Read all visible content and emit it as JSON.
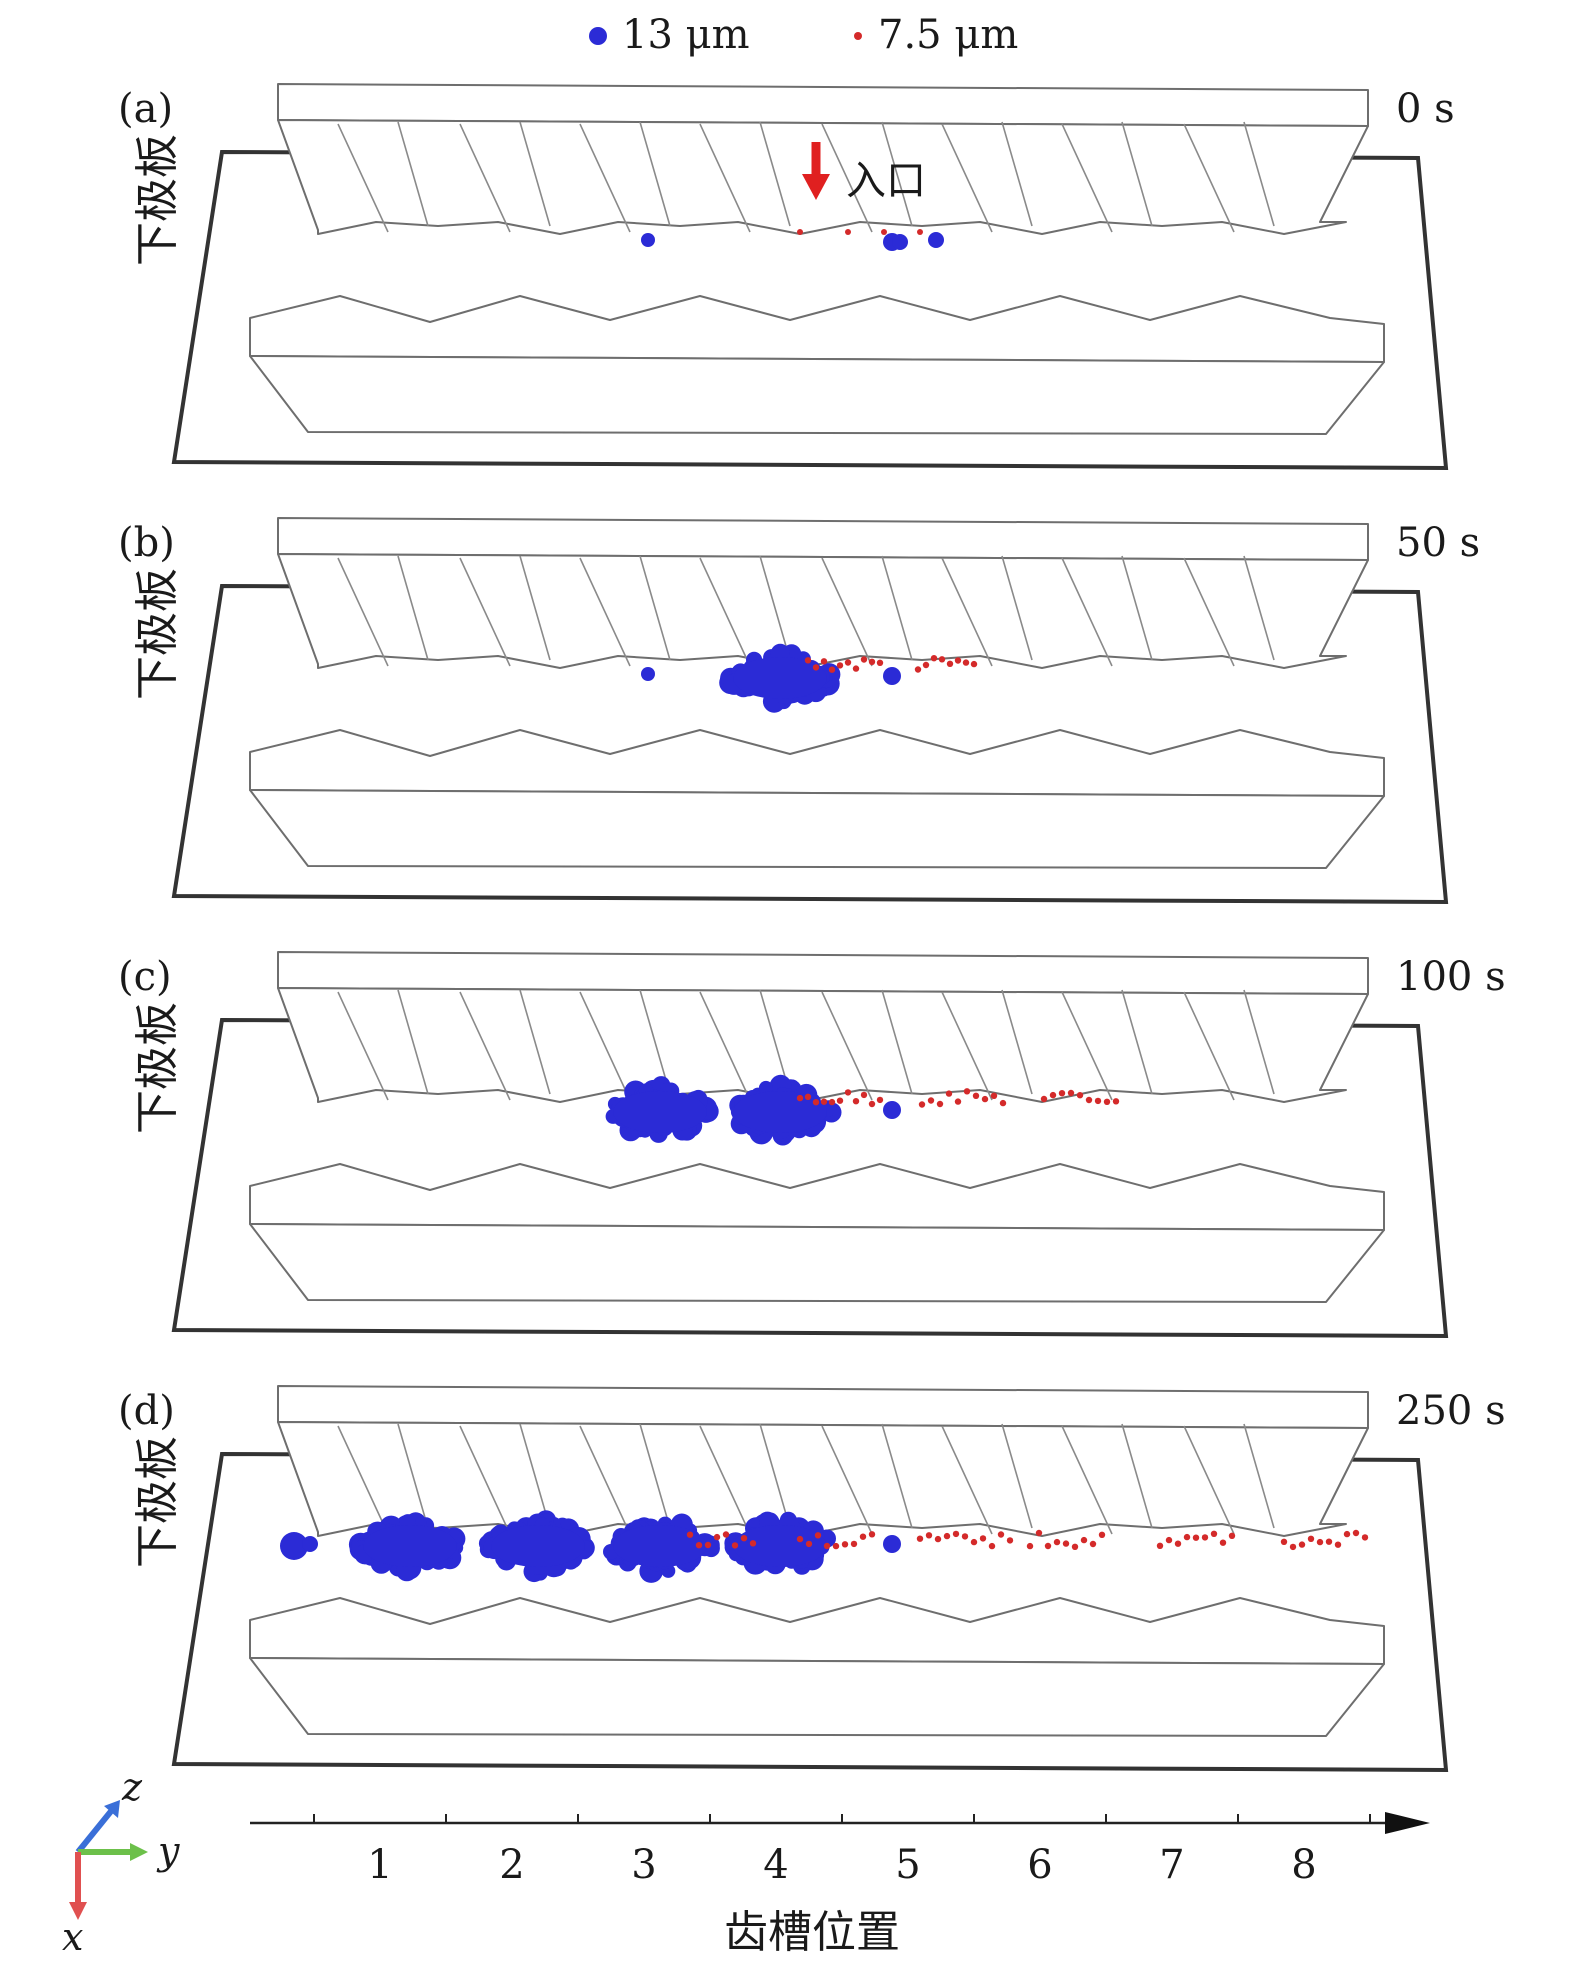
{
  "legend": {
    "large_label": "13 μm",
    "small_label": "7.5 μm",
    "large_color": "#2b2bd6",
    "small_color": "#d42a2a"
  },
  "panels": [
    {
      "tag": "(a)",
      "time": "0 s",
      "side_label": "下极板",
      "inlet_label": "入口",
      "pockets": [
        0,
        0,
        0,
        0
      ]
    },
    {
      "tag": "(b)",
      "time": "50 s",
      "side_label": "下极板",
      "pockets": [
        0,
        0,
        0,
        1
      ]
    },
    {
      "tag": "(c)",
      "time": "100 s",
      "side_label": "下极板",
      "pockets": [
        0,
        0,
        1,
        1
      ]
    },
    {
      "tag": "(d)",
      "time": "250 s",
      "side_label": "下极板",
      "pockets": [
        1,
        1,
        1,
        1
      ]
    }
  ],
  "axis": {
    "ticks": [
      "1",
      "2",
      "3",
      "4",
      "5",
      "6",
      "7",
      "8"
    ],
    "title": "齿槽位置"
  },
  "triad": {
    "x": "x",
    "y": "y",
    "z": "z"
  },
  "colors": {
    "x_axis": "#e05050",
    "y_axis": "#6cc04a",
    "z_axis": "#3a6fd8",
    "inlet_arrow": "#e02020"
  }
}
